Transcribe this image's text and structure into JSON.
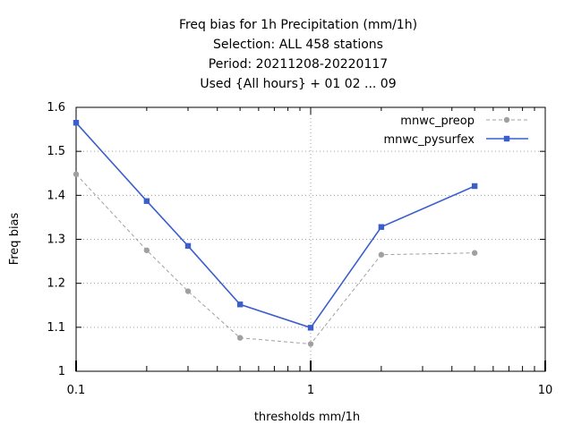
{
  "chart_data": {
    "type": "line",
    "title_lines": [
      "Freq bias  for 1h Precipitation (mm/1h)",
      "Selection: ALL    458 stations",
      "Period: 20211208-20220117",
      "Used {All hours} + 01 02 ... 09"
    ],
    "xlabel": "thresholds mm/1h",
    "ylabel": "Freq bias",
    "x_scale": "log",
    "xlim": [
      0.1,
      10
    ],
    "ylim": [
      1.0,
      1.6
    ],
    "x_ticks": [
      {
        "value": 0.1,
        "label": "0.1"
      },
      {
        "value": 1,
        "label": "1"
      },
      {
        "value": 10,
        "label": "10"
      }
    ],
    "y_ticks": [
      {
        "value": 1.0,
        "label": "1"
      },
      {
        "value": 1.1,
        "label": "1.1"
      },
      {
        "value": 1.2,
        "label": "1.2"
      },
      {
        "value": 1.3,
        "label": "1.3"
      },
      {
        "value": 1.4,
        "label": "1.4"
      },
      {
        "value": 1.5,
        "label": "1.5"
      },
      {
        "value": 1.6,
        "label": "1.6"
      }
    ],
    "grid": true,
    "legend_position": "top-right",
    "series": [
      {
        "name": "mnwc_preop",
        "color": "#a0a0a0",
        "dashed": true,
        "x": [
          0.1,
          0.2,
          0.3,
          0.5,
          1,
          2,
          5
        ],
        "y": [
          1.448,
          1.275,
          1.182,
          1.076,
          1.062,
          1.265,
          1.269
        ]
      },
      {
        "name": "mnwc_pysurfex",
        "color": "#3a5fcd",
        "dashed": false,
        "x": [
          0.1,
          0.2,
          0.3,
          0.5,
          1,
          2,
          5
        ],
        "y": [
          1.565,
          1.387,
          1.285,
          1.152,
          1.099,
          1.328,
          1.421
        ]
      }
    ]
  }
}
